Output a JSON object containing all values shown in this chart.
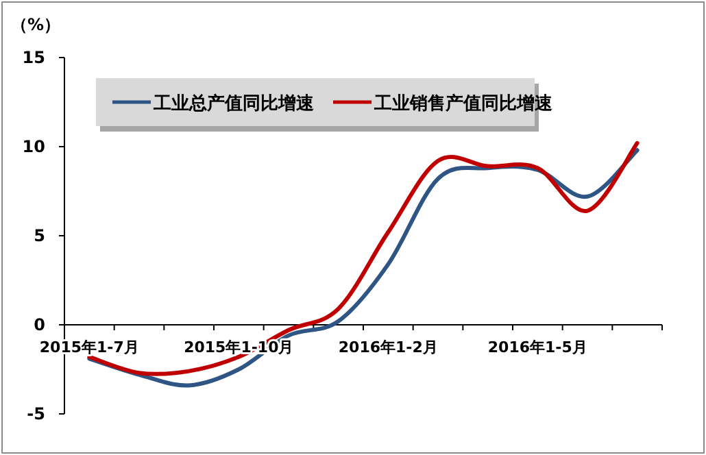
{
  "chart_data": {
    "type": "line",
    "ylabel": "（%）",
    "categories": [
      "2015年1-7月",
      null,
      null,
      "2015年1-10月",
      null,
      null,
      "2016年1-2月",
      null,
      null,
      "2016年1-5月",
      null,
      null
    ],
    "series": [
      {
        "name": "工业总产值同比增速",
        "color": "#2e5584",
        "values": [
          -1.9,
          -2.8,
          -3.4,
          -2.5,
          -0.6,
          0.2,
          3.4,
          8.2,
          8.8,
          8.7,
          7.2,
          9.8
        ]
      },
      {
        "name": "工业销售产值同比增速",
        "color": "#c00000",
        "values": [
          -1.8,
          -2.7,
          -2.6,
          -1.8,
          -0.3,
          0.9,
          5.2,
          9.2,
          8.9,
          8.8,
          6.4,
          10.2
        ]
      }
    ],
    "ylim": [
      -5,
      15
    ],
    "yticks": [
      -5,
      0,
      5,
      10,
      15
    ],
    "grid": false,
    "legend": "top",
    "marker": "none",
    "line_style": "solid"
  }
}
